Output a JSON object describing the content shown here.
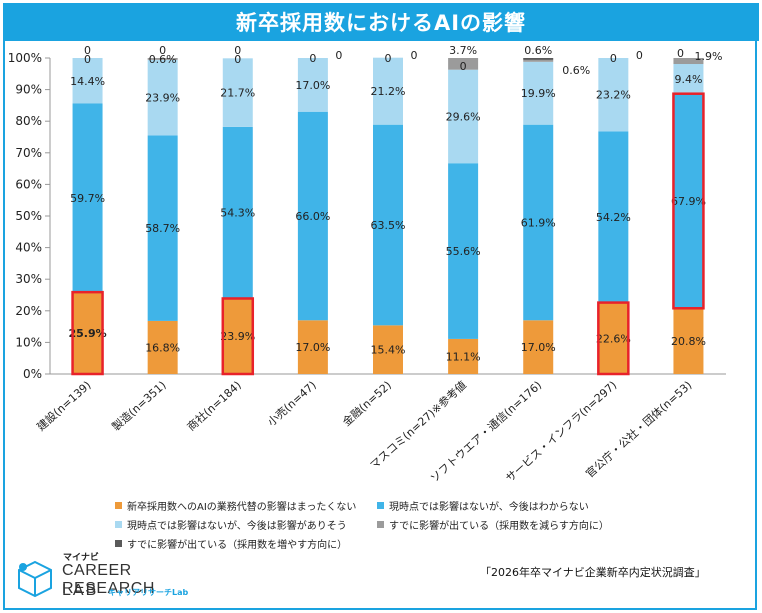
{
  "title": "新卒採用数におけるAIの影響",
  "source": "「2026年卒マイナビ企業新卒内定状況調査」",
  "logo": {
    "kana_top": "マイナビ",
    "line1": "CAREER RESEARCH",
    "line2": "LAB",
    "kana_bottom": "キャリアリサーチLab"
  },
  "colors": {
    "title_bg": "#1aa3e0",
    "s0": "#ee9a3a",
    "s1": "#40b4e8",
    "s2": "#a9d9f1",
    "s3": "#9b9b9b",
    "s4": "#5a5a5a",
    "highlight": "#e8222a"
  },
  "legend": [
    "新卒採用数へのAIの業務代替の影響はまったくない",
    "現時点では影響はないが、今後はわからない",
    "現時点では影響はないが、今後は影響がありそう",
    "すでに影響が出ている（採用数を減らす方向に）",
    "すでに影響が出ている（採用数を増やす方向に）"
  ],
  "chart_data": {
    "type": "bar",
    "stacked": true,
    "title": "新卒採用数におけるAIの影響",
    "categories": [
      "建設(n=139)",
      "製造(n=351)",
      "商社(n=184)",
      "小売(n=47)",
      "金融(n=52)",
      "マスコミ(n=27)※参考値",
      "ソフトウエア・通信(n=176)",
      "サービス・インフラ(n=297)",
      "官公庁・公社・団体(n=53)"
    ],
    "series": [
      {
        "name": "新卒採用数へのAIの業務代替の影響はまったくない",
        "values": [
          25.9,
          16.8,
          23.9,
          17.0,
          15.4,
          11.1,
          17.0,
          22.6,
          20.8
        ]
      },
      {
        "name": "現時点では影響はないが、今後はわからない",
        "values": [
          59.7,
          58.7,
          54.3,
          66.0,
          63.5,
          55.6,
          61.9,
          54.2,
          67.9
        ]
      },
      {
        "name": "現時点では影響はないが、今後は影響がありそう",
        "values": [
          14.4,
          23.9,
          21.7,
          17.0,
          21.2,
          29.6,
          19.9,
          23.2,
          9.4
        ]
      },
      {
        "name": "すでに影響が出ている（採用数を減らす方向に）",
        "values": [
          0,
          0.6,
          0,
          0,
          0,
          3.7,
          0.6,
          0,
          1.9
        ]
      },
      {
        "name": "すでに影響が出ている（採用数を増やす方向に）",
        "values": [
          0,
          0,
          0,
          0,
          0,
          0,
          0.6,
          0,
          0
        ]
      }
    ],
    "labels": [
      [
        "25.9%",
        "16.8%",
        "23.9%",
        "17.0%",
        "15.4%",
        "11.1%",
        "17.0%",
        "22.6%",
        "20.8%"
      ],
      [
        "59.7%",
        "58.7%",
        "54.3%",
        "66.0%",
        "63.5%",
        "55.6%",
        "61.9%",
        "54.2%",
        "67.9%"
      ],
      [
        "14.4%",
        "23.9%",
        "21.7%",
        "17.0%",
        "21.2%",
        "29.6%",
        "19.9%",
        "23.2%",
        "9.4%"
      ],
      [
        "0",
        "0.6%",
        "0",
        "0",
        "0",
        "3.7%",
        "0.6%",
        "0",
        "1.9%"
      ],
      [
        "0",
        "0",
        "0",
        "0",
        "0",
        "0",
        "0.6%",
        "0",
        "0"
      ]
    ],
    "highlights": [
      {
        "category": 0,
        "series": 0
      },
      {
        "category": 2,
        "series": 0
      },
      {
        "category": 7,
        "series": 0
      },
      {
        "category": 8,
        "series": 1
      }
    ],
    "yticks": [
      "0%",
      "10%",
      "20%",
      "30%",
      "40%",
      "50%",
      "60%",
      "70%",
      "80%",
      "90%",
      "100%"
    ],
    "ylim": [
      0,
      100
    ]
  }
}
